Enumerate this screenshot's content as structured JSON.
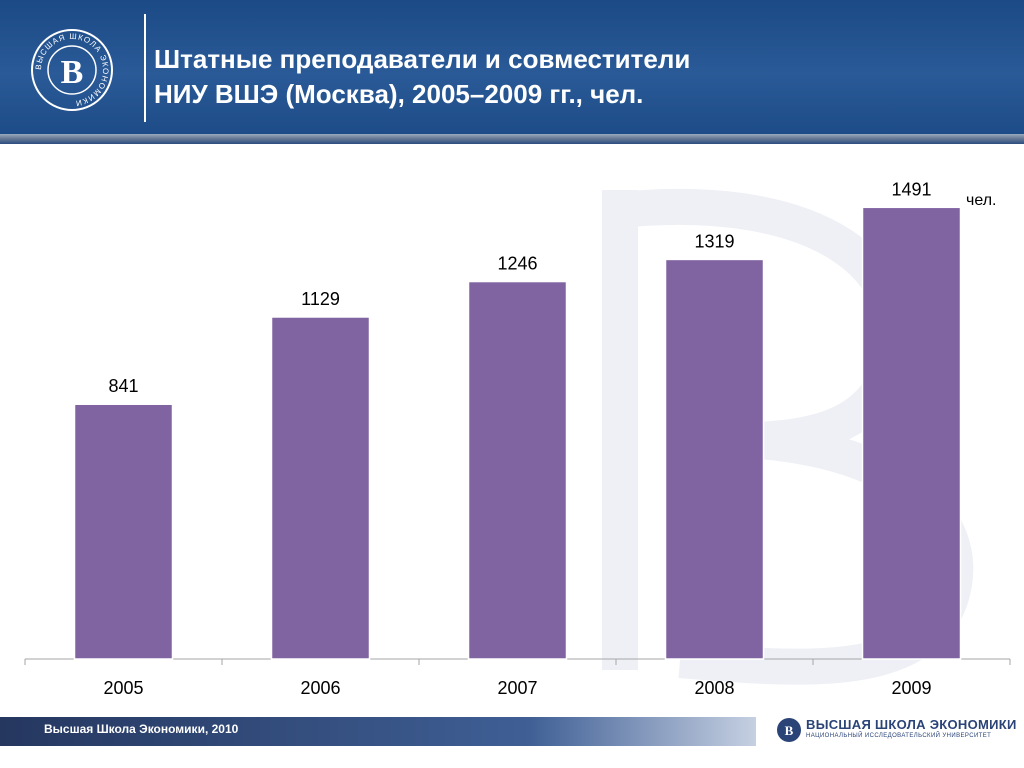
{
  "header": {
    "logo_icon": "hse-seal-icon",
    "title_line1": "Штатные преподаватели и совместители",
    "title_line2": "НИУ ВШЭ (Москва), 2005–2009 гг., чел.",
    "seal_text": "ВЫСШАЯ ШКОЛА ЭКОНОМИКИ"
  },
  "colors": {
    "header": "#1f4e8c",
    "bar": "#8064a2",
    "footer_text": "#2a4478"
  },
  "chart_data": {
    "type": "bar",
    "categories": [
      "2005",
      "2006",
      "2007",
      "2008",
      "2009"
    ],
    "values": [
      841,
      1129,
      1246,
      1319,
      1491
    ],
    "unit_label": "чел.",
    "title": "",
    "xlabel": "",
    "ylabel": "",
    "ylim": [
      0,
      1700
    ],
    "grid": false,
    "data_labels": true
  },
  "footer": {
    "left_text": "Высшая Школа Экономики, 2010",
    "logo_icon": "hse-logo-icon",
    "brand_name": "ВЫСШАЯ ШКОЛА ЭКОНОМИКИ",
    "brand_subtitle": "НАЦИОНАЛЬНЫЙ ИССЛЕДОВАТЕЛЬСКИЙ УНИВЕРСИТЕТ"
  }
}
